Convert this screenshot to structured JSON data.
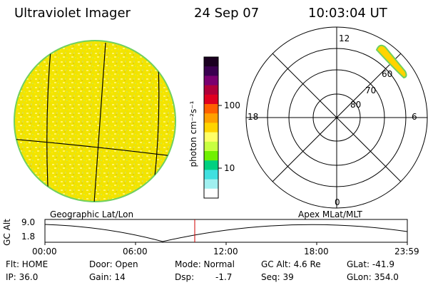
{
  "header": {
    "title": "Ultraviolet Imager",
    "date": "24 Sep 07",
    "time": "10:03:04 UT"
  },
  "colorbar": {
    "unit_label": "photon cm⁻²s⁻¹",
    "tick_100": "100",
    "tick_10": "10",
    "colors_top_to_bottom": [
      "#1a0020",
      "#3a0050",
      "#7a0070",
      "#b0003a",
      "#e00020",
      "#ff6000",
      "#ffa000",
      "#ffd400",
      "#ffff66",
      "#c8ff40",
      "#70f000",
      "#00d080",
      "#40e0e0",
      "#a0f0f0",
      "#ffffff"
    ]
  },
  "polar_plot": {
    "label_12": "12",
    "label_18": "18",
    "label_6": "6",
    "label_0": "0",
    "ring_60": "60",
    "ring_70": "70",
    "ring_80": "80"
  },
  "timeline": {
    "left_title": "Geographic Lat/Lon",
    "right_title": "Apex MLat/MLT",
    "axis_label": "GC Alt",
    "y_top": "9.0",
    "y_bottom": "1.8",
    "x_labels": [
      "00:00",
      "06:00",
      "12:00",
      "18:00",
      "23:59"
    ]
  },
  "info": {
    "flt": "Flt: HOME",
    "door": "Door: Open",
    "mode": "Mode: Normal",
    "gcalt": "GC Alt: 4.6 Re",
    "glat": "GLat: -41.9",
    "ip": "IP: 36.0",
    "gain": "Gain: 14",
    "dsp_label": "Dsp:",
    "dsp_value": "-1.7",
    "seq": "Seq: 39",
    "glon": "GLon: 354.0"
  }
}
